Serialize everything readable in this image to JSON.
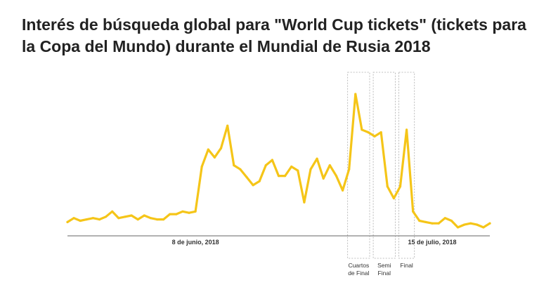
{
  "chart_data": {
    "type": "line",
    "title": "Interés de búsqueda global para \"World Cup tickets\" (tickets para la Copa del Mundo) durante el Mundial de Rusia 2018",
    "xlabel": "",
    "ylabel": "",
    "ylim": [
      0,
      100
    ],
    "grid": false,
    "x_ticks": [
      {
        "label": "8 de junio, 2018",
        "index": 20
      },
      {
        "label": "15 de julio, 2018",
        "index": 57
      }
    ],
    "series": [
      {
        "color": "#F5C518",
        "values": [
          3,
          6,
          4,
          5,
          6,
          5,
          7,
          11,
          6,
          7,
          8,
          5,
          8,
          6,
          5,
          5,
          9,
          9,
          11,
          10,
          11,
          45,
          58,
          52,
          59,
          76,
          46,
          43,
          37,
          31,
          34,
          46,
          50,
          38,
          38,
          45,
          42,
          18,
          43,
          51,
          36,
          46,
          38,
          27,
          43,
          100,
          73,
          71,
          68,
          71,
          30,
          21,
          30,
          73,
          11,
          4,
          3,
          2,
          2,
          6,
          4,
          -1,
          1,
          2,
          1,
          -1,
          2
        ]
      }
    ],
    "highlights": [
      {
        "label_lines": [
          "Cuartos",
          "de Final"
        ],
        "start_index": 44,
        "end_index": 47
      },
      {
        "label_lines": [
          "Semi",
          "Final"
        ],
        "start_index": 48,
        "end_index": 51
      },
      {
        "label_lines": [
          "Final"
        ],
        "start_index": 52,
        "end_index": 54
      }
    ]
  }
}
